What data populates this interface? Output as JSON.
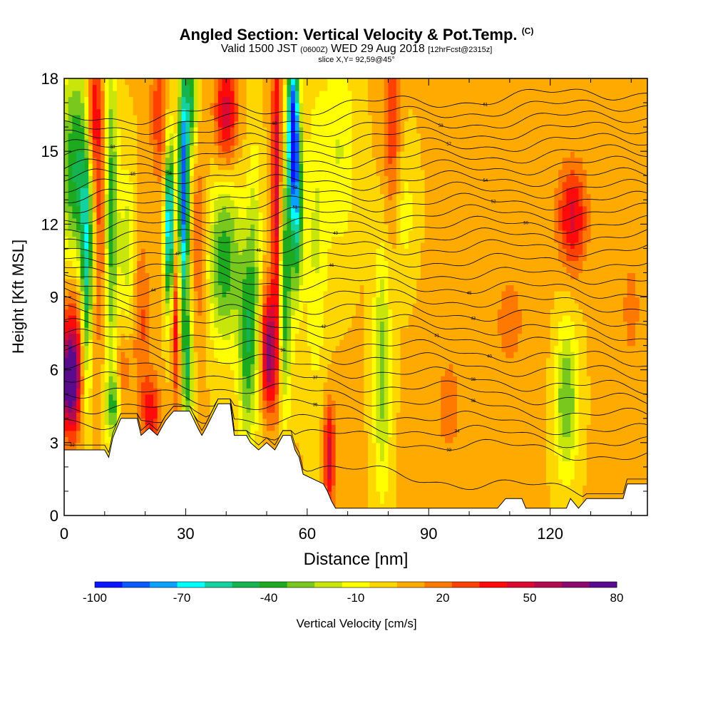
{
  "title": {
    "main": "Angled Section: Vertical Velocity & Pot.Temp.",
    "unit_tag": "(C)",
    "valid_prefix": "Valid 1500 JST",
    "utc_tag": "(0600Z)",
    "valid_date": "WED 29 Aug 2018",
    "fcst_tag": "[12hrFcst@2315z]",
    "slice": "slice X,Y= 92,59@45°"
  },
  "chart_data": {
    "type": "heatmap",
    "title": "Angled Section: Vertical Velocity & Pot.Temp.",
    "xlabel": "Distance [nm]",
    "ylabel": "Height [Kft MSL]",
    "xlim": [
      0,
      144
    ],
    "ylim": [
      0,
      18
    ],
    "x_ticks": [
      0,
      30,
      60,
      90,
      120
    ],
    "y_ticks": [
      0,
      3,
      6,
      9,
      12,
      15,
      18
    ],
    "x_tick_labels": [
      "0",
      "30",
      "60",
      "90",
      "120"
    ],
    "y_tick_labels": [
      "0",
      "3",
      "6",
      "9",
      "12",
      "15",
      "18"
    ],
    "colorbar": {
      "label": "Vertical Velocity [cm/s]",
      "min": -100,
      "max": 80,
      "tick_values": [
        -100,
        -70,
        -40,
        -10,
        20,
        50,
        80
      ],
      "tick_labels": [
        "-100",
        "-70",
        "-40",
        "-10",
        "20",
        "50",
        "80"
      ],
      "colors": [
        "#0a14ff",
        "#0a5aff",
        "#0aa0ff",
        "#00ffff",
        "#14d2a0",
        "#14b450",
        "#1eaa1e",
        "#78c81e",
        "#c8e60a",
        "#ffff00",
        "#ffd700",
        "#ffaa00",
        "#ff7800",
        "#ff4100",
        "#ff0a0a",
        "#dc0a32",
        "#b40a50",
        "#8c0a6e",
        "#5a0a8c"
      ]
    },
    "background_value": 5,
    "features": [
      {
        "x": 1.5,
        "y": 5.5,
        "sx": 1.5,
        "sy": 1.3,
        "value": 80
      },
      {
        "x": 2.5,
        "y": 7.5,
        "sx": 2.5,
        "sy": 2.5,
        "value": 40
      },
      {
        "x": 3.0,
        "y": 14.0,
        "sx": 3.0,
        "sy": 3.5,
        "value": -45
      },
      {
        "x": 5.5,
        "y": 9.5,
        "sx": 1.0,
        "sy": 3.5,
        "value": -50
      },
      {
        "x": 7.0,
        "y": 16.5,
        "sx": 1.2,
        "sy": 2.0,
        "value": 45
      },
      {
        "x": 9.0,
        "y": 13.0,
        "sx": 1.2,
        "sy": 4.0,
        "value": 35
      },
      {
        "x": 11.5,
        "y": 12.5,
        "sx": 1.2,
        "sy": 5.0,
        "value": -40
      },
      {
        "x": 13.0,
        "y": 4.5,
        "sx": 2.0,
        "sy": 1.0,
        "value": -35
      },
      {
        "x": 14.5,
        "y": 5.0,
        "sx": 1.2,
        "sy": 1.5,
        "value": 40
      },
      {
        "x": 15.5,
        "y": 11.0,
        "sx": 1.5,
        "sy": 2.5,
        "value": -20
      },
      {
        "x": 19.0,
        "y": 8.0,
        "sx": 1.5,
        "sy": 2.5,
        "value": 25
      },
      {
        "x": 21.5,
        "y": 4.3,
        "sx": 1.5,
        "sy": 1.0,
        "value": 40
      },
      {
        "x": 23.5,
        "y": 16.5,
        "sx": 1.5,
        "sy": 2.0,
        "value": 30
      },
      {
        "x": 26.0,
        "y": 12.0,
        "sx": 0.8,
        "sy": 2.5,
        "value": -80
      },
      {
        "x": 27.5,
        "y": 8.0,
        "sx": 0.8,
        "sy": 2.5,
        "value": 40
      },
      {
        "x": 29.5,
        "y": 13.5,
        "sx": 0.9,
        "sy": 3.5,
        "value": -90
      },
      {
        "x": 30.5,
        "y": 6.0,
        "sx": 1.0,
        "sy": 2.0,
        "value": -40
      },
      {
        "x": 31.5,
        "y": 17.0,
        "sx": 1.0,
        "sy": 1.5,
        "value": -40
      },
      {
        "x": 33.5,
        "y": 11.0,
        "sx": 1.5,
        "sy": 3.0,
        "value": 25
      },
      {
        "x": 39.5,
        "y": 10.5,
        "sx": 3.0,
        "sy": 2.5,
        "value": -40
      },
      {
        "x": 40.0,
        "y": 16.5,
        "sx": 2.0,
        "sy": 1.5,
        "value": 50
      },
      {
        "x": 45.0,
        "y": 7.0,
        "sx": 1.5,
        "sy": 3.0,
        "value": -35
      },
      {
        "x": 47.0,
        "y": 10.0,
        "sx": 1.2,
        "sy": 4.0,
        "value": -20
      },
      {
        "x": 50.5,
        "y": 6.8,
        "sx": 1.3,
        "sy": 1.6,
        "value": 65
      },
      {
        "x": 52.5,
        "y": 13.0,
        "sx": 0.9,
        "sy": 5.0,
        "value": 55
      },
      {
        "x": 54.5,
        "y": 9.5,
        "sx": 1.2,
        "sy": 3.5,
        "value": -45
      },
      {
        "x": 56.5,
        "y": 16.0,
        "sx": 1.0,
        "sy": 2.2,
        "value": -95
      },
      {
        "x": 57.5,
        "y": 12.5,
        "sx": 1.0,
        "sy": 2.5,
        "value": -50
      },
      {
        "x": 62.0,
        "y": 11.0,
        "sx": 2.0,
        "sy": 4.5,
        "value": -15
      },
      {
        "x": 65.5,
        "y": 2.5,
        "sx": 1.0,
        "sy": 1.5,
        "value": 50
      },
      {
        "x": 68.0,
        "y": 15.0,
        "sx": 3.0,
        "sy": 3.0,
        "value": -15
      },
      {
        "x": 78.5,
        "y": 6.0,
        "sx": 1.5,
        "sy": 3.5,
        "value": -30
      },
      {
        "x": 81.0,
        "y": 16.0,
        "sx": 1.5,
        "sy": 3.0,
        "value": 30
      },
      {
        "x": 84.0,
        "y": 12.5,
        "sx": 2.0,
        "sy": 2.0,
        "value": -10
      },
      {
        "x": 95.0,
        "y": 4.5,
        "sx": 4.0,
        "sy": 3.0,
        "value": 15
      },
      {
        "x": 110.0,
        "y": 8.0,
        "sx": 5.0,
        "sy": 3.0,
        "value": 15
      },
      {
        "x": 124.0,
        "y": 4.8,
        "sx": 2.0,
        "sy": 2.2,
        "value": -35
      },
      {
        "x": 125.5,
        "y": 12.3,
        "sx": 2.5,
        "sy": 1.5,
        "value": 45
      },
      {
        "x": 140.0,
        "y": 8.5,
        "sx": 3.0,
        "sy": 3.0,
        "value": 15
      }
    ],
    "terrain": [
      [
        0,
        2.7
      ],
      [
        10,
        2.7
      ],
      [
        11,
        2.4
      ],
      [
        12,
        3.2
      ],
      [
        13,
        3.6
      ],
      [
        14,
        4.0
      ],
      [
        18,
        4.0
      ],
      [
        19,
        3.3
      ],
      [
        21,
        3.6
      ],
      [
        23,
        3.3
      ],
      [
        25,
        3.9
      ],
      [
        27,
        4.3
      ],
      [
        31,
        4.3
      ],
      [
        33,
        3.6
      ],
      [
        34,
        3.3
      ],
      [
        35,
        3.6
      ],
      [
        38,
        4.6
      ],
      [
        41,
        4.6
      ],
      [
        42,
        3.3
      ],
      [
        45,
        3.3
      ],
      [
        46,
        3.0
      ],
      [
        48,
        2.7
      ],
      [
        50,
        3.0
      ],
      [
        52,
        2.7
      ],
      [
        54,
        3.3
      ],
      [
        56,
        3.3
      ],
      [
        57,
        2.7
      ],
      [
        58,
        2.4
      ],
      [
        59,
        1.7
      ],
      [
        64,
        1.3
      ],
      [
        65,
        1.0
      ],
      [
        66,
        0.6
      ],
      [
        67,
        0.3
      ],
      [
        107,
        0.3
      ],
      [
        109,
        0.7
      ],
      [
        113,
        0.7
      ],
      [
        114,
        0.3
      ],
      [
        124,
        0.3
      ],
      [
        125,
        0.7
      ],
      [
        127,
        0.3
      ],
      [
        129,
        0.7
      ],
      [
        138,
        0.7
      ],
      [
        139,
        1.3
      ],
      [
        144,
        1.3
      ]
    ],
    "theta_isentropes": [
      {
        "label": "32",
        "label_x": 2,
        "y_west": 2.9,
        "y_east": 0.7
      },
      {
        "label": "33",
        "label_x": 95,
        "y_west": 4.0,
        "y_east": 2.4
      },
      {
        "label": "34",
        "label_x": 97,
        "y_west": 4.6,
        "y_east": 2.9
      },
      {
        "label": "35",
        "label_x": 62,
        "y_west": 5.2,
        "y_east": 3.4
      },
      {
        "label": "36",
        "label_x": 101,
        "y_west": 5.8,
        "y_east": 4.0
      },
      {
        "label": "37",
        "label_x": 62,
        "y_west": 6.3,
        "y_east": 4.6
      },
      {
        "label": "38",
        "label_x": 101,
        "y_west": 6.9,
        "y_east": 5.1
      },
      {
        "label": "39",
        "label_x": 54,
        "y_west": 7.4,
        "y_east": 5.7
      },
      {
        "label": "40",
        "label_x": 105,
        "y_west": 7.8,
        "y_east": 6.3
      },
      {
        "label": "41",
        "label_x": 92,
        "y_west": 8.3,
        "y_east": 6.9
      },
      {
        "label": "42",
        "label_x": 64,
        "y_west": 8.7,
        "y_east": 7.4
      },
      {
        "label": "43",
        "label_x": 101,
        "y_west": 9.1,
        "y_east": 8.0
      },
      {
        "label": "44",
        "label_x": 22,
        "y_west": 9.5,
        "y_east": 8.6
      },
      {
        "label": "45",
        "label_x": 100,
        "y_west": 9.9,
        "y_east": 9.2
      },
      {
        "label": "46",
        "label_x": 66,
        "y_west": 10.3,
        "y_east": 9.8
      },
      {
        "label": "47",
        "label_x": 28,
        "y_west": 10.7,
        "y_east": 10.4
      },
      {
        "label": "48",
        "label_x": 48,
        "y_west": 11.1,
        "y_east": 11.0
      },
      {
        "label": "49",
        "label_x": 67,
        "y_west": 11.5,
        "y_east": 11.5
      },
      {
        "label": "50",
        "label_x": 114,
        "y_west": 11.9,
        "y_east": 12.0
      },
      {
        "label": "51",
        "label_x": 57,
        "y_west": 12.3,
        "y_east": 12.5
      },
      {
        "label": "52",
        "label_x": 106,
        "y_west": 12.7,
        "y_east": 13.0
      },
      {
        "label": "53",
        "label_x": 57,
        "y_west": 13.1,
        "y_east": 13.5
      },
      {
        "label": "54",
        "label_x": 104,
        "y_west": 13.5,
        "y_east": 14.0
      },
      {
        "label": "55",
        "label_x": 17,
        "y_west": 13.9,
        "y_east": 14.5
      },
      {
        "label": "56",
        "label_x": 26,
        "y_west": 14.3,
        "y_east": 15.0
      },
      {
        "label": "57",
        "label_x": 95,
        "y_west": 14.7,
        "y_east": 15.5
      },
      {
        "label": "58",
        "label_x": 12,
        "y_west": 15.1,
        "y_east": 16.0
      },
      {
        "label": "59",
        "label_x": 93,
        "y_west": 15.5,
        "y_east": 16.5
      },
      {
        "label": "60",
        "label_x": 52,
        "y_west": 15.9,
        "y_east": 17.0
      },
      {
        "label": "61",
        "label_x": 104,
        "y_west": 16.3,
        "y_east": 17.5
      }
    ]
  }
}
